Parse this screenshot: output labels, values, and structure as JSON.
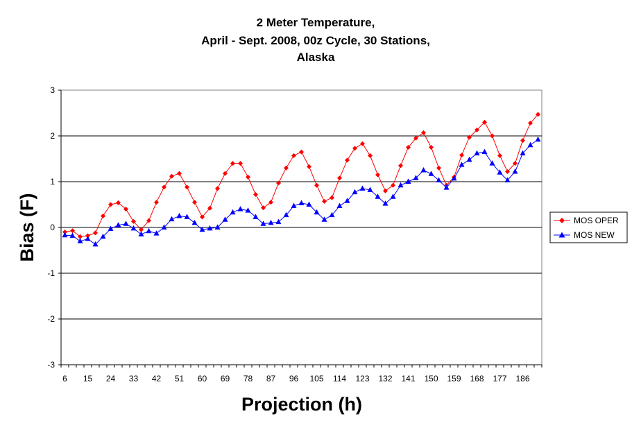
{
  "chart_data": {
    "type": "line",
    "title_lines": [
      "2 Meter Temperature,",
      "April - Sept. 2008, 00z Cycle, 30 Stations,",
      "Alaska"
    ],
    "xlabel": "Projection (h)",
    "ylabel": "Bias (F)",
    "ylim": [
      -3,
      3
    ],
    "y_ticks": [
      "3",
      "2",
      "1",
      "0",
      "-1",
      "-2",
      "-3"
    ],
    "y_tick_values": [
      3,
      2,
      1,
      0,
      -1,
      -2,
      -3
    ],
    "x_tick_labels": [
      "6",
      "15",
      "24",
      "33",
      "42",
      "51",
      "60",
      "69",
      "78",
      "87",
      "96",
      "105",
      "114",
      "123",
      "132",
      "141",
      "150",
      "159",
      "168",
      "177",
      "186"
    ],
    "x": [
      6,
      9,
      12,
      15,
      18,
      21,
      24,
      27,
      30,
      33,
      36,
      39,
      42,
      45,
      48,
      51,
      54,
      57,
      60,
      63,
      66,
      69,
      72,
      75,
      78,
      81,
      84,
      87,
      90,
      93,
      96,
      99,
      102,
      105,
      108,
      111,
      114,
      117,
      120,
      123,
      126,
      129,
      132,
      135,
      138,
      141,
      144,
      147,
      150,
      153,
      156,
      159,
      162,
      165,
      168,
      171,
      174,
      177,
      180,
      183,
      186,
      189,
      192
    ],
    "grid": "horizontal",
    "legend_position": "right",
    "series": [
      {
        "name": "MOS OPER",
        "color": "#ff0000",
        "marker": "diamond",
        "values": [
          -0.1,
          -0.07,
          -0.2,
          -0.18,
          -0.12,
          0.25,
          0.5,
          0.54,
          0.4,
          0.13,
          -0.05,
          0.15,
          0.55,
          0.88,
          1.12,
          1.18,
          0.88,
          0.55,
          0.23,
          0.42,
          0.85,
          1.18,
          1.4,
          1.4,
          1.1,
          0.72,
          0.43,
          0.55,
          0.97,
          1.3,
          1.57,
          1.65,
          1.33,
          0.92,
          0.57,
          0.65,
          1.08,
          1.47,
          1.73,
          1.83,
          1.57,
          1.15,
          0.8,
          0.92,
          1.35,
          1.75,
          1.95,
          2.07,
          1.75,
          1.3,
          0.92,
          1.1,
          1.58,
          1.97,
          2.13,
          2.3,
          2.0,
          1.57,
          1.22,
          1.4,
          1.9,
          2.28,
          2.47
        ]
      },
      {
        "name": "MOS NEW",
        "color": "#0000ff",
        "marker": "triangle",
        "values": [
          -0.17,
          -0.18,
          -0.3,
          -0.25,
          -0.37,
          -0.2,
          -0.03,
          0.05,
          0.08,
          -0.02,
          -0.15,
          -0.08,
          -0.13,
          0.0,
          0.18,
          0.25,
          0.23,
          0.1,
          -0.05,
          -0.02,
          0.0,
          0.17,
          0.33,
          0.4,
          0.37,
          0.23,
          0.08,
          0.1,
          0.12,
          0.27,
          0.47,
          0.53,
          0.5,
          0.33,
          0.17,
          0.27,
          0.47,
          0.58,
          0.77,
          0.85,
          0.82,
          0.67,
          0.52,
          0.67,
          0.92,
          1.0,
          1.08,
          1.25,
          1.17,
          1.03,
          0.87,
          1.07,
          1.37,
          1.48,
          1.62,
          1.65,
          1.4,
          1.2,
          1.03,
          1.22,
          1.62,
          1.8,
          1.92
        ]
      }
    ]
  }
}
